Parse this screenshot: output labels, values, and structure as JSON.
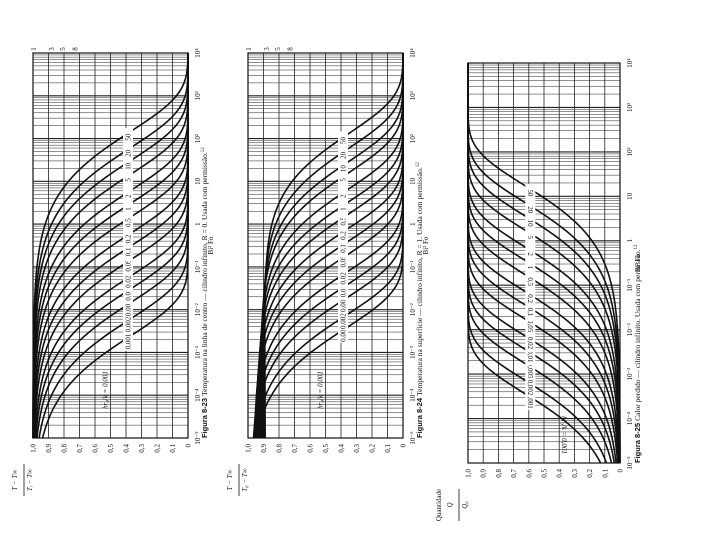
{
  "chart_data": [
    {
      "type": "line",
      "figure_label": "Figura 8-23",
      "caption": "Temperatura na linha de centro — cilindro infinito, R = 0. Usada com permissão.",
      "caption_ref": "12",
      "xlabel": "Bi² Fo",
      "ylabel_num": "T − T∞",
      "ylabel_den": "Tᵢ − T∞",
      "x_scale": "log",
      "xlim": [
        1e-05,
        10000
      ],
      "ylim": [
        0,
        1
      ],
      "x_ticks": [
        "10⁻⁵",
        "10⁻⁴",
        "10⁻³",
        "10⁻²",
        "10⁻¹",
        "1",
        "10",
        "10²",
        "10³",
        "10⁴"
      ],
      "y_ticks": [
        "0",
        "0,1",
        "0,2",
        "0,3",
        "0,4",
        "0,5",
        "0,6",
        "0,7",
        "0,8",
        "0,9",
        "1,0"
      ],
      "top_ticks": [
        "1",
        "3",
        "5",
        "8"
      ],
      "param_label_lead": "hr₀/k = 0,001",
      "series": [
        {
          "name": "0,001",
          "mid": 0.002,
          "lo": 0.0008
        },
        {
          "name": "0,002",
          "mid": 0.005,
          "lo": 0.0015
        },
        {
          "name": "0,005",
          "mid": 0.012,
          "lo": 0.004
        },
        {
          "name": "0,01",
          "mid": 0.025,
          "lo": 0.008
        },
        {
          "name": "0,02",
          "mid": 0.05,
          "lo": 0.015
        },
        {
          "name": "0,05",
          "mid": 0.12,
          "lo": 0.035
        },
        {
          "name": "0,1",
          "mid": 0.25,
          "lo": 0.07
        },
        {
          "name": "0,2",
          "mid": 0.5,
          "lo": 0.14
        },
        {
          "name": "0,5",
          "mid": 1.2,
          "lo": 0.35
        },
        {
          "name": "1",
          "mid": 2.5,
          "lo": 0.7
        },
        {
          "name": "2",
          "mid": 5,
          "lo": 1.4
        },
        {
          "name": "5",
          "mid": 12,
          "lo": 3.5
        },
        {
          "name": "10",
          "mid": 25,
          "lo": 7
        },
        {
          "name": "20",
          "mid": 50,
          "lo": 14
        },
        {
          "name": "50",
          "mid": 120,
          "lo": 35
        }
      ],
      "grid": true
    },
    {
      "type": "line",
      "figure_label": "Figura 8-24",
      "caption": "Temperatura na superfície — cilindro infinito, R = 1. Usada com permissão.",
      "caption_ref": "12",
      "xlabel": "Bi² Fo",
      "ylabel_num": "T − T∞",
      "ylabel_den": "T₀ − T∞",
      "x_scale": "log",
      "xlim": [
        1e-05,
        10000
      ],
      "ylim": [
        0,
        1
      ],
      "x_ticks": [
        "10⁻⁵",
        "10⁻⁴",
        "10⁻³",
        "10⁻²",
        "10⁻¹",
        "1",
        "10",
        "10²",
        "10³",
        "10⁴"
      ],
      "y_ticks": [
        "0",
        "0,1",
        "0,2",
        "0,3",
        "0,4",
        "0,5",
        "0,6",
        "0,7",
        "0,8",
        "0,9",
        "1,0"
      ],
      "top_ticks": [
        "1",
        "3",
        "5",
        "8"
      ],
      "param_label_lead": "hr₀/k = 0,001",
      "series": [
        {
          "name": "0,001",
          "mid": 0.003,
          "lo": 0.0004
        },
        {
          "name": "0,002",
          "mid": 0.006,
          "lo": 0.0008
        },
        {
          "name": "0,005",
          "mid": 0.015,
          "lo": 0.002
        },
        {
          "name": "0,01",
          "mid": 0.03,
          "lo": 0.004
        },
        {
          "name": "0,02",
          "mid": 0.06,
          "lo": 0.008
        },
        {
          "name": "0,05",
          "mid": 0.15,
          "lo": 0.02
        },
        {
          "name": "0,1",
          "mid": 0.3,
          "lo": 0.04
        },
        {
          "name": "0,2",
          "mid": 0.6,
          "lo": 0.08
        },
        {
          "name": "0,5",
          "mid": 1.3,
          "lo": 0.2
        },
        {
          "name": "1",
          "mid": 2.5,
          "lo": 0.4
        },
        {
          "name": "2",
          "mid": 5,
          "lo": 0.8
        },
        {
          "name": "5",
          "mid": 12,
          "lo": 2
        },
        {
          "name": "10",
          "mid": 22,
          "lo": 4
        },
        {
          "name": "20",
          "mid": 45,
          "lo": 8
        },
        {
          "name": "50",
          "mid": 100,
          "lo": 20
        }
      ],
      "grid": true
    },
    {
      "type": "line",
      "figure_label": "Figura 8-25",
      "caption": "Calor perdido — cilindro infinito. Usada com permissão.",
      "caption_ref": "12",
      "xlabel": "Bi² Fo",
      "ylabel_num": "Q",
      "ylabel_den": "Q₀",
      "ylabel_note": "Quantidade",
      "x_scale": "log",
      "xlim": [
        1e-05,
        10000
      ],
      "ylim": [
        0,
        1
      ],
      "x_ticks": [
        "10⁻⁵",
        "10⁻⁴",
        "10⁻³",
        "10⁻²",
        "10⁻¹",
        "1",
        "10",
        "10²",
        "10³",
        "10⁴"
      ],
      "y_ticks": [
        "0",
        "0,1",
        "0,2",
        "0,3",
        "0,4",
        "0,5",
        "0,6",
        "0,7",
        "0,8",
        "0,9",
        "1,0"
      ],
      "param_label_lead": "hr₀/k = 0,001",
      "series": [
        {
          "name": "0,001",
          "mid": 0.00025
        },
        {
          "name": "0,002",
          "mid": 0.0005
        },
        {
          "name": "0,005",
          "mid": 0.0012
        },
        {
          "name": "0,01",
          "mid": 0.0025
        },
        {
          "name": "0,02",
          "mid": 0.005
        },
        {
          "name": "0,05",
          "mid": 0.012
        },
        {
          "name": "0,1",
          "mid": 0.025
        },
        {
          "name": "0,2",
          "mid": 0.05
        },
        {
          "name": "0,5",
          "mid": 0.12
        },
        {
          "name": "1",
          "mid": 0.25
        },
        {
          "name": "2",
          "mid": 0.5
        },
        {
          "name": "5",
          "mid": 1.2
        },
        {
          "name": "10",
          "mid": 2.5
        },
        {
          "name": "20",
          "mid": 5
        },
        {
          "name": "50",
          "mid": 12
        }
      ],
      "grid": true
    }
  ]
}
